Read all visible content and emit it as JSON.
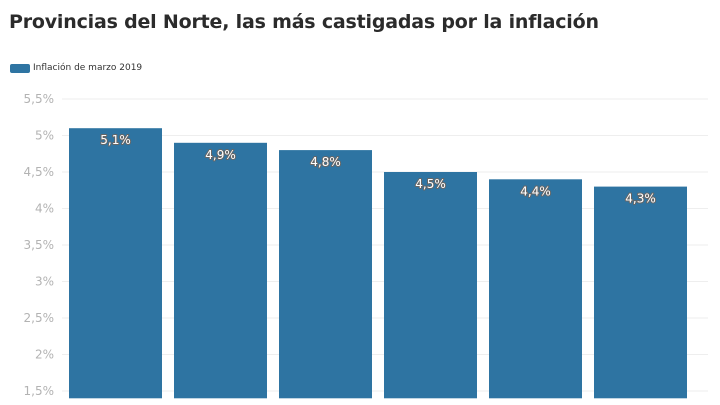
{
  "chart_data": {
    "type": "bar",
    "title": "Provincias del Norte, las más castigadas por la inflación",
    "subtitle": "",
    "xlabel": "",
    "ylabel": "",
    "categories": [
      "",
      "",
      "",
      "",
      "",
      ""
    ],
    "series": [
      {
        "name": "Inflación de marzo 2019",
        "values": [
          5.1,
          4.9,
          4.8,
          4.5,
          4.4,
          4.3
        ],
        "labels": [
          "5,1%",
          "4,9%",
          "4,8%",
          "4,5%",
          "4,4%",
          "4,3%"
        ],
        "color": "#2e74a2"
      }
    ],
    "y_ticks": [
      1.5,
      2,
      2.5,
      3,
      3.5,
      4,
      4.5,
      5,
      5.5
    ],
    "y_tick_labels": [
      "1,5%",
      "2%",
      "2,5%",
      "3%",
      "3,5%",
      "4%",
      "4,5%",
      "5%",
      "5,5%"
    ],
    "ylim": [
      1.4,
      5.5
    ],
    "grid": true,
    "legend_position": "top-left"
  },
  "colors": {
    "bar": "#2e74a2",
    "grid": "#eeeeee",
    "tick_text": "#b3b3b3",
    "title_text": "#2b2b2b"
  }
}
